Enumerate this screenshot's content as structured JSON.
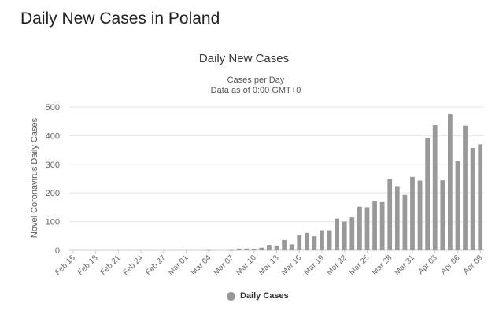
{
  "page": {
    "heading": "Daily New Cases in Poland"
  },
  "chart_data": {
    "type": "bar",
    "title": "Daily New Cases",
    "subtitle": "Cases per Day",
    "subtitle2": "Data as of 0:00 GMT+0",
    "ylabel": "Novel Coronavirus Daily Cases",
    "xlabel": "",
    "ylim": [
      0,
      500
    ],
    "yticks": [
      0,
      100,
      200,
      300,
      400,
      500
    ],
    "grid": true,
    "legend": "bottom-center",
    "bar_color": "#999999",
    "categories": [
      "Feb 15",
      "Feb 16",
      "Feb 17",
      "Feb 18",
      "Feb 19",
      "Feb 20",
      "Feb 21",
      "Feb 22",
      "Feb 23",
      "Feb 24",
      "Feb 25",
      "Feb 26",
      "Feb 27",
      "Feb 28",
      "Feb 29",
      "Mar 01",
      "Mar 02",
      "Mar 03",
      "Mar 04",
      "Mar 05",
      "Mar 06",
      "Mar 07",
      "Mar 08",
      "Mar 09",
      "Mar 10",
      "Mar 11",
      "Mar 12",
      "Mar 13",
      "Mar 14",
      "Mar 15",
      "Mar 16",
      "Mar 17",
      "Mar 18",
      "Mar 19",
      "Mar 20",
      "Mar 21",
      "Mar 22",
      "Mar 23",
      "Mar 24",
      "Mar 25",
      "Mar 26",
      "Mar 27",
      "Mar 28",
      "Mar 29",
      "Mar 30",
      "Mar 31",
      "Apr 01",
      "Apr 02",
      "Apr 03",
      "Apr 04",
      "Apr 05",
      "Apr 06",
      "Apr 07",
      "Apr 08",
      "Apr 09"
    ],
    "tick_labels": [
      "Feb 15",
      "Feb 18",
      "Feb 21",
      "Feb 24",
      "Feb 27",
      "Mar 01",
      "Mar 04",
      "Mar 07",
      "Mar 10",
      "Mar 13",
      "Mar 16",
      "Mar 19",
      "Mar 22",
      "Mar 25",
      "Mar 28",
      "Mar 31",
      "Apr 03",
      "Apr 06",
      "Apr 09"
    ],
    "series": [
      {
        "name": "Daily Cases",
        "values": [
          0,
          0,
          0,
          0,
          0,
          0,
          0,
          0,
          0,
          0,
          0,
          0,
          0,
          0,
          0,
          0,
          0,
          0,
          1,
          0,
          0,
          1,
          6,
          6,
          5,
          9,
          19,
          17,
          36,
          21,
          52,
          61,
          49,
          70,
          70,
          111,
          100,
          115,
          152,
          150,
          170,
          168,
          249,
          224,
          193,
          256,
          243,
          392,
          437,
          244,
          475,
          311,
          435,
          357,
          370
        ]
      }
    ]
  }
}
